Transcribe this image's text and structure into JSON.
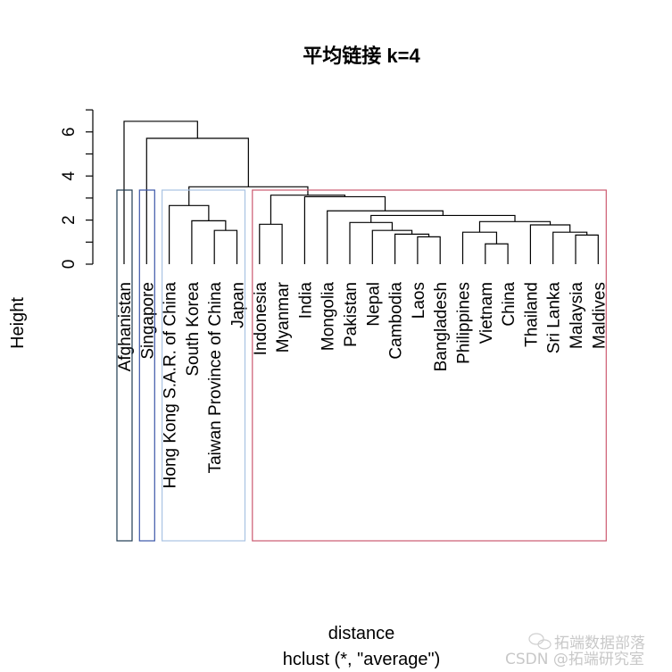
{
  "chart_data": {
    "type": "dendrogram",
    "title": "平均链接 k=4",
    "xlabel": "distance",
    "sub": "hclust (*, \"average\")",
    "ylabel": "Height",
    "ylim": [
      0,
      7
    ],
    "yticks": [
      0,
      1,
      2,
      3,
      4,
      5,
      6,
      7
    ],
    "ytick_labels": [
      "0",
      "2",
      "4",
      "6"
    ],
    "ytick_label_values": [
      0,
      2,
      4,
      6
    ],
    "leaves": [
      "Afghanistan",
      "Singapore",
      "Hong Kong S.A.R. of China",
      "South Korea",
      "Taiwan Province of China",
      "Japan",
      "Indonesia",
      "Myanmar",
      "India",
      "Mongolia",
      "Pakistan",
      "Nepal",
      "Cambodia",
      "Laos",
      "Bangladesh",
      "Philippines",
      "Vietnam",
      "China",
      "Thailand",
      "Sri Lanka",
      "Malaysia",
      "Maldives"
    ],
    "merges": [
      [
        -14,
        -15,
        1.24
      ],
      [
        -13,
        1,
        1.36
      ],
      [
        -12,
        2,
        1.53
      ],
      [
        -11,
        3,
        1.89
      ],
      [
        -17,
        -18,
        0.92
      ],
      [
        -16,
        5,
        1.45
      ],
      [
        -21,
        -22,
        1.32
      ],
      [
        -20,
        7,
        1.45
      ],
      [
        -19,
        8,
        1.78
      ],
      [
        6,
        9,
        1.93
      ],
      [
        4,
        10,
        2.21
      ],
      [
        -10,
        11,
        2.42
      ],
      [
        -9,
        12,
        3.06
      ],
      [
        -7,
        -8,
        1.81
      ],
      [
        14,
        13,
        3.13
      ],
      [
        -5,
        -6,
        1.53
      ],
      [
        -4,
        16,
        1.97
      ],
      [
        -3,
        17,
        2.66
      ],
      [
        18,
        15,
        3.51
      ],
      [
        -2,
        19,
        5.71
      ],
      [
        -1,
        20,
        6.48
      ]
    ],
    "k": 4,
    "clusters": [
      {
        "first_leaf": 1,
        "last_leaf": 1,
        "color": "#1f3b52"
      },
      {
        "first_leaf": 2,
        "last_leaf": 2,
        "color": "#3a55a8"
      },
      {
        "first_leaf": 3,
        "last_leaf": 6,
        "color": "#a9c3e3"
      },
      {
        "first_leaf": 7,
        "last_leaf": 22,
        "color": "#cc5a70"
      }
    ]
  },
  "watermark": {
    "line1": "拓端数据部落",
    "line2": "CSDN @拓端研究室"
  }
}
